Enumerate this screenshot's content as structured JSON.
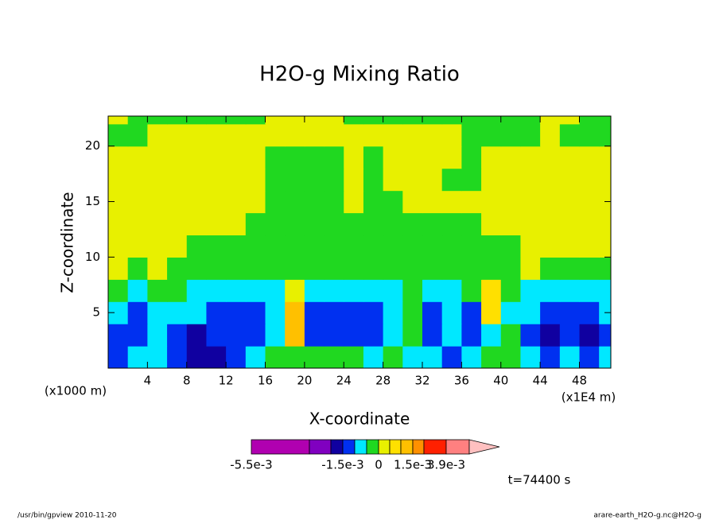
{
  "chart_data": {
    "type": "contour",
    "title": "H2O-g Mixing Ratio",
    "x_label": "X-coordinate",
    "y_label": "Z-coordinate",
    "x_unit": "(x1000 m)",
    "x_scale": "(x1E4 m)",
    "time": "t=74400 s",
    "footer_left": "/usr/bin/gpview  2010-11-20",
    "footer_right": "arare-earth_H2O-g.nc@H2O-g",
    "xlim": [
      0,
      51.2
    ],
    "ylim": [
      0,
      22.7
    ],
    "xticks": [
      4,
      8,
      12,
      16,
      20,
      24,
      28,
      32,
      36,
      40,
      44,
      48
    ],
    "yticks": [
      5,
      10,
      15,
      20
    ],
    "x": [
      1,
      3,
      5,
      7,
      9,
      11,
      13,
      15,
      17,
      19,
      21,
      23,
      25,
      27,
      29,
      31,
      33,
      35,
      37,
      39,
      41,
      43,
      45,
      47,
      49,
      51
    ],
    "y": [
      1,
      3,
      5,
      7,
      9,
      11,
      13,
      15,
      17,
      19,
      21,
      23
    ],
    "values": [
      [
        -0.0012,
        -0.0007,
        -0.0007,
        -0.0012,
        -0.0017,
        -0.0017,
        -0.0012,
        -0.0007,
        -0.0002,
        -0.0002,
        -0.0002,
        -0.0002,
        -0.0002,
        -0.0007,
        -0.0002,
        -0.0007,
        -0.0007,
        -0.0012,
        -0.0007,
        -0.0002,
        -0.0002,
        -0.0007,
        -0.0012,
        -0.0007,
        -0.0012,
        -0.0007
      ],
      [
        -0.0012,
        -0.0012,
        -0.0007,
        -0.0012,
        -0.0017,
        -0.0012,
        -0.0012,
        -0.0012,
        -0.0007,
        0.0012,
        -0.0012,
        -0.0012,
        -0.0012,
        -0.0012,
        -0.0007,
        -0.0002,
        -0.0012,
        -0.0007,
        -0.0012,
        -0.0007,
        -0.0002,
        -0.0012,
        -0.0017,
        -0.0012,
        -0.0017,
        -0.0012
      ],
      [
        -0.0007,
        -0.0012,
        -0.0007,
        -0.0007,
        -0.0007,
        -0.0012,
        -0.0012,
        -0.0012,
        -0.0007,
        0.0012,
        -0.0012,
        -0.0012,
        -0.0012,
        -0.0012,
        -0.0007,
        -0.0002,
        -0.0012,
        -0.0007,
        -0.0012,
        0.0007,
        -0.0007,
        -0.0007,
        -0.0012,
        -0.0012,
        -0.0012,
        -0.0007
      ],
      [
        -0.0002,
        -0.0007,
        -0.0002,
        -0.0002,
        -0.0007,
        -0.0007,
        -0.0007,
        -0.0007,
        -0.0007,
        0.0002,
        -0.0007,
        -0.0007,
        -0.0007,
        -0.0007,
        -0.0007,
        -0.0002,
        -0.0007,
        -0.0007,
        -0.0002,
        0.0007,
        -0.0002,
        -0.0007,
        -0.0007,
        -0.0007,
        -0.0007,
        -0.0007
      ],
      [
        0.0002,
        -0.0002,
        0.0002,
        -0.0002,
        -0.0002,
        -0.0002,
        -0.0002,
        -0.0002,
        -0.0002,
        -0.0002,
        -0.0002,
        -0.0002,
        -0.0002,
        -0.0002,
        -0.0002,
        -0.0002,
        -0.0002,
        -0.0002,
        -0.0002,
        -0.0002,
        -0.0002,
        0.0002,
        -0.0002,
        -0.0002,
        -0.0002,
        -0.0002
      ],
      [
        0.0002,
        0.0002,
        0.0002,
        0.0002,
        -0.0002,
        -0.0002,
        -0.0002,
        -0.0002,
        -0.0002,
        -0.0002,
        -0.0002,
        -0.0002,
        -0.0002,
        -0.0002,
        -0.0002,
        -0.0002,
        -0.0002,
        -0.0002,
        -0.0002,
        -0.0002,
        -0.0002,
        0.0002,
        0.0002,
        0.0002,
        0.0002,
        0.0002
      ],
      [
        0.0002,
        0.0002,
        0.0002,
        0.0002,
        0.0002,
        0.0002,
        0.0002,
        -0.0002,
        -0.0002,
        -0.0002,
        -0.0002,
        -0.0002,
        -0.0002,
        -0.0002,
        -0.0002,
        -0.0002,
        -0.0002,
        -0.0002,
        -0.0002,
        0.0002,
        0.0002,
        0.0002,
        0.0002,
        0.0002,
        0.0002,
        0.0002
      ],
      [
        0.0002,
        0.0002,
        0.0002,
        0.0002,
        0.0002,
        0.0002,
        0.0002,
        0.0002,
        -0.0002,
        -0.0002,
        -0.0002,
        -0.0002,
        0.0002,
        -0.0002,
        -0.0002,
        0.0002,
        0.0002,
        0.0002,
        0.0002,
        0.0002,
        0.0002,
        0.0002,
        0.0002,
        0.0002,
        0.0002,
        0.0002
      ],
      [
        0.0002,
        0.0002,
        0.0002,
        0.0002,
        0.0002,
        0.0002,
        0.0002,
        0.0002,
        -0.0002,
        -0.0002,
        -0.0002,
        -0.0002,
        0.0002,
        -0.0002,
        0.0002,
        0.0002,
        0.0002,
        -0.0002,
        -0.0002,
        0.0002,
        0.0002,
        0.0002,
        0.0002,
        0.0002,
        0.0002,
        0.0002
      ],
      [
        0.0002,
        0.0002,
        0.0002,
        0.0002,
        0.0002,
        0.0002,
        0.0002,
        0.0002,
        -0.0002,
        -0.0002,
        -0.0002,
        -0.0002,
        0.0002,
        -0.0002,
        0.0002,
        0.0002,
        0.0002,
        0.0002,
        -0.0002,
        0.0002,
        0.0002,
        0.0002,
        0.0002,
        0.0002,
        0.0002,
        0.0002
      ],
      [
        -0.0002,
        -0.0002,
        0.0002,
        0.0002,
        0.0002,
        0.0002,
        0.0002,
        0.0002,
        0.0002,
        0.0002,
        0.0002,
        0.0002,
        0.0002,
        0.0002,
        0.0002,
        0.0002,
        0.0002,
        0.0002,
        -0.0002,
        -0.0002,
        -0.0002,
        -0.0002,
        0.0002,
        -0.0002,
        -0.0002,
        -0.0002
      ],
      [
        0.0002,
        -0.0002,
        -0.0002,
        -0.0002,
        -0.0002,
        -0.0002,
        -0.0002,
        -0.0002,
        0.0002,
        0.0002,
        0.0002,
        0.0002,
        -0.0002,
        -0.0002,
        -0.0002,
        -0.0002,
        -0.0002,
        -0.0002,
        -0.0002,
        -0.0002,
        -0.0002,
        -0.0002,
        0.0002,
        0.0002,
        -0.0002,
        -0.0002
      ]
    ],
    "colorbar": {
      "levels": [
        -0.0055,
        -0.0025,
        -0.002,
        -0.0015,
        -0.001,
        -0.0005,
        0,
        0.0005,
        0.001,
        0.0015,
        0.002,
        0.0039,
        0.0059
      ],
      "colors": [
        "#b000b0",
        "#8000c0",
        "#1000a0",
        "#0030f0",
        "#00e8ff",
        "#20d820",
        "#e8f000",
        "#ffe000",
        "#ffc000",
        "#ff9000",
        "#ff2000",
        "#ff8080"
      ],
      "over_color": "#ffc0c0",
      "ticks": [
        {
          "value": -0.0055,
          "label": "-5.5e-3"
        },
        {
          "value": -0.0015,
          "label": "-1.5e-3"
        },
        0,
        {
          "value": 0.0015,
          "label": "1.5e-3"
        },
        {
          "value": 0.0039,
          "label": "3.9e-3"
        }
      ]
    }
  }
}
